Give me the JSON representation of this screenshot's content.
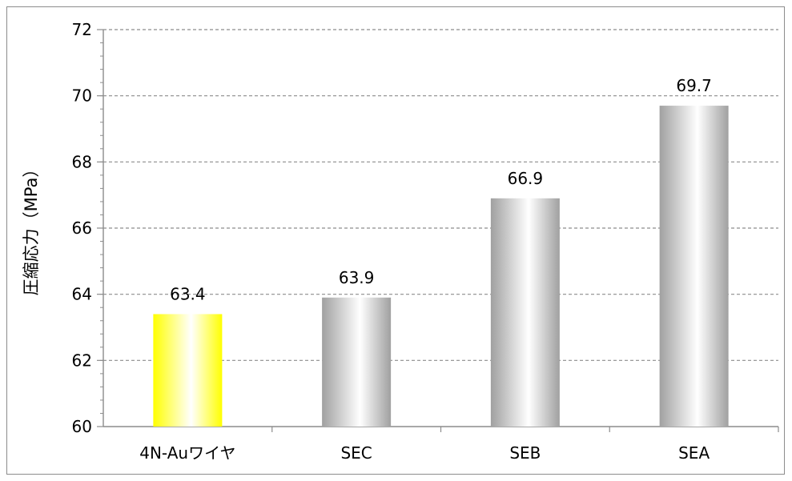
{
  "chart_data": {
    "type": "bar",
    "title": "",
    "xlabel": "",
    "ylabel": "圧縮応力（MPa）",
    "ylim": [
      60,
      72
    ],
    "yticks": [
      60,
      62,
      64,
      66,
      68,
      70,
      72
    ],
    "categories": [
      "4N-Auワイヤ",
      "SEC",
      "SEB",
      "SEA"
    ],
    "values": [
      63.4,
      63.9,
      66.9,
      69.7
    ],
    "data_labels": [
      "63.4",
      "63.9",
      "66.9",
      "69.7"
    ],
    "bar_colors": [
      "#ffff33",
      "#a0a0a0",
      "#a0a0a0",
      "#a0a0a0"
    ],
    "grid": true,
    "legend": "none"
  }
}
